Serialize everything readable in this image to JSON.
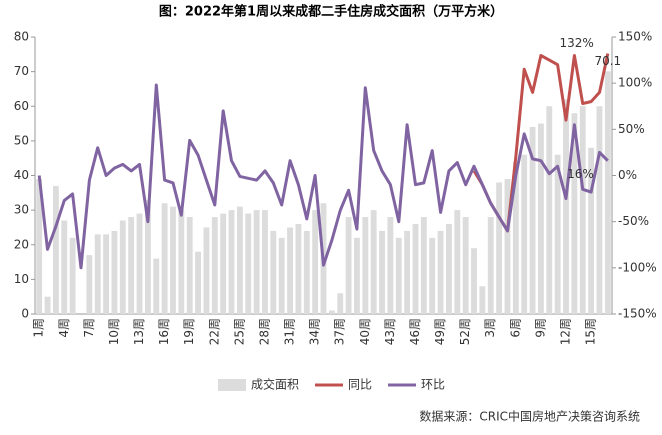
{
  "chart_data": {
    "type": "combo",
    "title": "图：2022年第1周以来成都二手住房成交面积（万平方米）",
    "source": "数据来源：CRIC中国房地产决策咨询系统",
    "categories": [
      "1周",
      null,
      null,
      "4周",
      null,
      null,
      "7周",
      null,
      null,
      "10周",
      null,
      null,
      "13周",
      null,
      null,
      "16周",
      null,
      null,
      "19周",
      null,
      null,
      "22周",
      null,
      null,
      "25周",
      null,
      null,
      "28周",
      null,
      null,
      "31周",
      null,
      null,
      "34周",
      null,
      null,
      "37周",
      null,
      null,
      "40周",
      null,
      null,
      "43周",
      null,
      null,
      "46周",
      null,
      null,
      "49周",
      null,
      null,
      "52周",
      null,
      null,
      "3周",
      null,
      null,
      "6周",
      null,
      null,
      "9周",
      null,
      null,
      "12周",
      null,
      null,
      "15周",
      null,
      null
    ],
    "ylim": [
      0,
      80
    ],
    "yticks": [
      0,
      10,
      20,
      30,
      40,
      50,
      60,
      70,
      80
    ],
    "y2lim": [
      -150,
      150
    ],
    "y2ticks": [
      {
        "value": -150,
        "label": "-150%"
      },
      {
        "value": -100,
        "label": "-100%"
      },
      {
        "value": -50,
        "label": "-50%"
      },
      {
        "value": 0,
        "label": "0%"
      },
      {
        "value": 50,
        "label": "50%"
      },
      {
        "value": 100,
        "label": "100%"
      },
      {
        "value": 150,
        "label": "150%"
      }
    ],
    "legend": "bottom",
    "series": [
      {
        "name": "成交面积",
        "type": "bar",
        "color": "#dcdcdc",
        "values": [
          39,
          5,
          37,
          27,
          22,
          0,
          17,
          23,
          23,
          24,
          27,
          28,
          29,
          33,
          16,
          32,
          31,
          30,
          28,
          18,
          25,
          28,
          29,
          30,
          31,
          29,
          30,
          30,
          24,
          22,
          25,
          26,
          24,
          30,
          32,
          1,
          6,
          28,
          22,
          28,
          30,
          24,
          28,
          22,
          24,
          26,
          28,
          22,
          24,
          26,
          30,
          28,
          19,
          8,
          28,
          38,
          39,
          44,
          46,
          54,
          55,
          60,
          46,
          62,
          58,
          60,
          48,
          60,
          70.1
        ],
        "value_labels": [
          null,
          null,
          null,
          null,
          null,
          null,
          null,
          null,
          null,
          null,
          null,
          null,
          null,
          null,
          null,
          null,
          null,
          null,
          null,
          null,
          null,
          null,
          null,
          null,
          null,
          null,
          null,
          null,
          null,
          null,
          null,
          null,
          null,
          null,
          null,
          null,
          null,
          null,
          null,
          null,
          null,
          null,
          null,
          null,
          null,
          null,
          null,
          null,
          null,
          null,
          null,
          null,
          null,
          null,
          null,
          null,
          null,
          null,
          null,
          null,
          null,
          null,
          null,
          null,
          null,
          null,
          null,
          null,
          "70.1"
        ]
      },
      {
        "name": "同比",
        "type": "line",
        "axis": "y2",
        "color": "#c0504d",
        "values": [
          null,
          null,
          null,
          null,
          null,
          null,
          null,
          null,
          null,
          null,
          null,
          null,
          null,
          null,
          null,
          null,
          null,
          null,
          null,
          null,
          null,
          null,
          null,
          null,
          null,
          null,
          null,
          null,
          null,
          null,
          null,
          null,
          null,
          null,
          null,
          null,
          null,
          null,
          null,
          null,
          null,
          null,
          null,
          null,
          null,
          null,
          null,
          null,
          null,
          null,
          null,
          null,
          5,
          -10,
          -30,
          -45,
          -60,
          20,
          115,
          90,
          130,
          125,
          120,
          60,
          130,
          78,
          80,
          90,
          132
        ],
        "value_labels": [
          null,
          null,
          null,
          null,
          null,
          null,
          null,
          null,
          null,
          null,
          null,
          null,
          null,
          null,
          null,
          null,
          null,
          null,
          null,
          null,
          null,
          null,
          null,
          null,
          null,
          null,
          null,
          null,
          null,
          null,
          null,
          null,
          null,
          null,
          null,
          null,
          null,
          null,
          null,
          null,
          null,
          null,
          null,
          null,
          null,
          null,
          null,
          null,
          null,
          null,
          null,
          null,
          null,
          null,
          null,
          null,
          null,
          null,
          null,
          null,
          null,
          null,
          null,
          null,
          null,
          null,
          null,
          null,
          "132%"
        ]
      },
      {
        "name": "环比",
        "type": "line",
        "axis": "y2",
        "color": "#8064a2",
        "values": [
          0,
          -80,
          -55,
          -27,
          -20,
          -100,
          -5,
          30,
          0,
          8,
          12,
          5,
          12,
          -50,
          98,
          -5,
          -8,
          -43,
          38,
          22,
          -5,
          -32,
          70,
          16,
          -1,
          -3,
          -5,
          5,
          -8,
          -32,
          16,
          -10,
          -47,
          0,
          -97,
          -70,
          -38,
          -16,
          -58,
          95,
          27,
          5,
          -10,
          -50,
          55,
          -10,
          -8,
          27,
          -40,
          5,
          14,
          -10,
          10,
          -10,
          -30,
          -45,
          -60,
          0,
          45,
          18,
          16,
          2,
          10,
          -25,
          55,
          -15,
          -18,
          25,
          16
        ],
        "value_labels": [
          null,
          null,
          null,
          null,
          null,
          null,
          null,
          null,
          null,
          null,
          null,
          null,
          null,
          null,
          null,
          null,
          null,
          null,
          null,
          null,
          null,
          null,
          null,
          null,
          null,
          null,
          null,
          null,
          null,
          null,
          null,
          null,
          null,
          null,
          null,
          null,
          null,
          null,
          null,
          null,
          null,
          null,
          null,
          null,
          null,
          null,
          null,
          null,
          null,
          null,
          null,
          null,
          null,
          null,
          null,
          null,
          null,
          null,
          null,
          null,
          null,
          null,
          null,
          null,
          null,
          null,
          null,
          null,
          "16%"
        ]
      }
    ]
  }
}
